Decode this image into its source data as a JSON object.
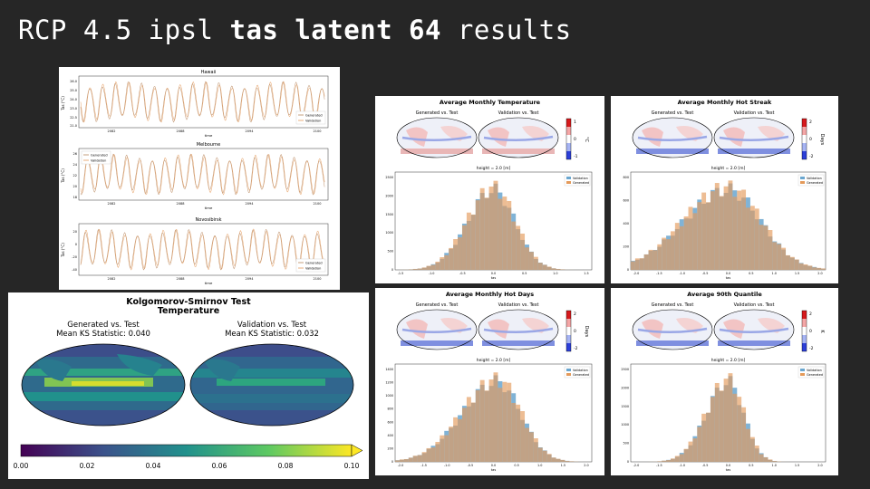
{
  "slide": {
    "title_pre": "RCP 4.5 ipsl ",
    "title_bold": "tas latent 64",
    "title_post": " results"
  },
  "colors": {
    "background": "#262626",
    "generated": "#e49a5a",
    "validation": "#6aa6cf",
    "overlap": "#c49a78"
  },
  "timeseries": [
    {
      "title": "Hawaii",
      "ylabel": "Tas (°C)",
      "xlabel": "time",
      "yticks": [
        "26.0",
        "25.0",
        "24.0",
        "23.0",
        "22.5",
        "21.0"
      ],
      "xticks": [
        "2082",
        "2088",
        "2094",
        "2100"
      ],
      "legend": [
        "Generated",
        "Validation"
      ],
      "legend_pos": "right"
    },
    {
      "title": "Melbourne",
      "ylabel": "Tas (°C)",
      "xlabel": "time",
      "yticks": [
        "26",
        "24",
        "22",
        "20",
        "18"
      ],
      "xticks": [
        "2082",
        "2088",
        "2094",
        "2100"
      ],
      "legend": [
        "Generated",
        "Validation"
      ],
      "legend_pos": "left"
    },
    {
      "title": "Novosibirsk",
      "ylabel": "Tas (°C)",
      "xlabel": "time",
      "yticks": [
        "20",
        "0",
        "-20",
        "-40"
      ],
      "xticks": [
        "2082",
        "2088",
        "2094",
        "2100"
      ],
      "legend": [
        "Generated",
        "Validation"
      ],
      "legend_pos": "right"
    }
  ],
  "ks": {
    "title_line1": "Kolgomorov-Smirnov Test",
    "title_line2": "Temperature",
    "left_title1": "Generated vs. Test",
    "left_title2": "Mean KS Statistic: 0.040",
    "right_title1": "Validation vs. Test",
    "right_title2": "Mean KS Statistic: 0.032",
    "colorbar_ticks": [
      "0.00",
      "0.02",
      "0.04",
      "0.06",
      "0.08",
      "0.10"
    ]
  },
  "map_panels": [
    {
      "title": "Average Monthly Temperature",
      "sub_left": "Generated vs. Test",
      "sub_right": "Validation vs. Test",
      "cbar_unit": "°C",
      "cbar_ticks": [
        "1",
        "0",
        "-1"
      ],
      "hist_title": "height = 2.0 [m]",
      "xlabel": "tas",
      "xticks": [
        "-1.5",
        "-1.0",
        "-0.5",
        "0.0",
        "0.5",
        "1.0",
        "1.5"
      ],
      "yticks": [
        "2500",
        "2000",
        "1500",
        "1000",
        "500",
        "0"
      ],
      "legend": [
        "Validation",
        "Generated"
      ]
    },
    {
      "title": "Average Monthly Hot Streak",
      "sub_left": "Generated vs. Test",
      "sub_right": "Validation vs. Test",
      "cbar_unit": "Days",
      "cbar_ticks": [
        "2",
        "0",
        "-2"
      ],
      "hist_title": "height = 2.0 [m]",
      "xlabel": "tas",
      "xticks": [
        "-2.0",
        "-1.5",
        "-1.0",
        "-0.5",
        "0.0",
        "0.5",
        "1.0",
        "1.5",
        "2.0"
      ],
      "yticks": [
        "800",
        "600",
        "400",
        "200",
        "0"
      ],
      "legend": [
        "Validation",
        "Generated"
      ]
    },
    {
      "title": "Average Monthly Hot Days",
      "sub_left": "Generated vs. Test",
      "sub_right": "Validation vs. Test",
      "cbar_unit": "Days",
      "cbar_ticks": [
        "2",
        "0",
        "-2"
      ],
      "hist_title": "height = 2.0 [m]",
      "xlabel": "tas",
      "xticks": [
        "-2.0",
        "-1.5",
        "-1.0",
        "-0.5",
        "0.0",
        "0.5",
        "1.0",
        "1.5",
        "2.0"
      ],
      "yticks": [
        "1400",
        "1200",
        "1000",
        "800",
        "600",
        "400",
        "200",
        "0"
      ],
      "legend": [
        "Validation",
        "Generated"
      ]
    },
    {
      "title": "Average 90th Quantile",
      "sub_left": "Generated vs. Test",
      "sub_right": "Validation vs. Test",
      "cbar_unit": "K",
      "cbar_ticks": [
        "2",
        "0",
        "-2"
      ],
      "hist_title": "height = 2.0 [m]",
      "xlabel": "tas",
      "xticks": [
        "-2.0",
        "-1.5",
        "-1.0",
        "-0.5",
        "0.0",
        "0.5",
        "1.0",
        "1.5",
        "2.0"
      ],
      "yticks": [
        "2500",
        "2000",
        "1500",
        "1000",
        "500",
        "0"
      ],
      "legend": [
        "Validation",
        "Generated"
      ]
    }
  ]
}
